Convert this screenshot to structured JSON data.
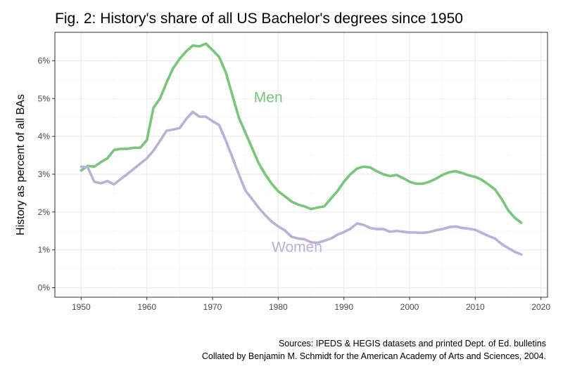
{
  "colors": {
    "men": "#78c679",
    "women": "#bcb0d9"
  },
  "chart_data": {
    "type": "line",
    "title": "Fig. 2: History's share of all US Bachelor's degrees since 1950",
    "xlabel": "",
    "ylabel": "History as percent of all BAs",
    "xlim": [
      1946,
      2021
    ],
    "ylim": [
      -0.25,
      6.75
    ],
    "x_ticks": [
      1950,
      1960,
      1970,
      1980,
      1990,
      2000,
      2010,
      2020
    ],
    "x_tick_labels": [
      "1950",
      "1960",
      "1970",
      "1980",
      "1990",
      "2000",
      "2010",
      "2020"
    ],
    "y_ticks": [
      0,
      1,
      2,
      3,
      4,
      5,
      6
    ],
    "y_tick_labels": [
      "0%",
      "1%",
      "2%",
      "3%",
      "4%",
      "5%",
      "6%"
    ],
    "grid": true,
    "series": [
      {
        "name": "Men",
        "label_x": 1976.3,
        "label_y": 4.9,
        "x": [
          1950,
          1951,
          1952,
          1953,
          1954,
          1955,
          1956,
          1957,
          1958,
          1959,
          1960,
          1961,
          1962,
          1963,
          1964,
          1965,
          1966,
          1967,
          1968,
          1969,
          1970,
          1971,
          1972,
          1973,
          1974,
          1975,
          1976,
          1977,
          1978,
          1979,
          1980,
          1981,
          1982,
          1983,
          1984,
          1985,
          1986,
          1987,
          1988,
          1989,
          1990,
          1991,
          1992,
          1993,
          1994,
          1995,
          1996,
          1997,
          1998,
          1999,
          2000,
          2001,
          2002,
          2003,
          2004,
          2005,
          2006,
          2007,
          2008,
          2009,
          2010,
          2011,
          2012,
          2013,
          2014,
          2015,
          2016,
          2017
        ],
        "values": [
          3.1,
          3.22,
          3.2,
          3.32,
          3.42,
          3.64,
          3.67,
          3.67,
          3.7,
          3.7,
          3.9,
          4.75,
          5.0,
          5.42,
          5.8,
          6.05,
          6.25,
          6.4,
          6.38,
          6.45,
          6.28,
          6.1,
          5.7,
          5.1,
          4.5,
          4.1,
          3.7,
          3.3,
          3.0,
          2.75,
          2.55,
          2.42,
          2.28,
          2.2,
          2.15,
          2.08,
          2.12,
          2.15,
          2.35,
          2.55,
          2.8,
          3.0,
          3.15,
          3.2,
          3.18,
          3.08,
          3.0,
          2.95,
          2.98,
          2.9,
          2.8,
          2.75,
          2.75,
          2.8,
          2.88,
          2.98,
          3.05,
          3.08,
          3.03,
          2.97,
          2.93,
          2.85,
          2.73,
          2.6,
          2.35,
          2.05,
          1.85,
          1.72
        ]
      },
      {
        "name": "Women",
        "label_x": 1979.0,
        "label_y": 0.95,
        "x": [
          1950,
          1951,
          1952,
          1953,
          1954,
          1955,
          1956,
          1957,
          1958,
          1959,
          1960,
          1961,
          1962,
          1963,
          1964,
          1965,
          1966,
          1967,
          1968,
          1969,
          1970,
          1971,
          1972,
          1973,
          1974,
          1975,
          1976,
          1977,
          1978,
          1979,
          1980,
          1981,
          1982,
          1983,
          1984,
          1985,
          1986,
          1987,
          1988,
          1989,
          1990,
          1991,
          1992,
          1993,
          1994,
          1995,
          1996,
          1997,
          1998,
          1999,
          2000,
          2001,
          2002,
          2003,
          2004,
          2005,
          2006,
          2007,
          2008,
          2009,
          2010,
          2011,
          2012,
          2013,
          2014,
          2015,
          2016,
          2017
        ],
        "values": [
          3.2,
          3.18,
          2.8,
          2.76,
          2.82,
          2.73,
          2.87,
          3.0,
          3.14,
          3.28,
          3.42,
          3.62,
          3.88,
          4.15,
          4.18,
          4.22,
          4.46,
          4.65,
          4.52,
          4.52,
          4.4,
          4.3,
          3.9,
          3.45,
          3.0,
          2.57,
          2.35,
          2.12,
          1.92,
          1.75,
          1.62,
          1.52,
          1.35,
          1.3,
          1.28,
          1.2,
          1.19,
          1.24,
          1.3,
          1.4,
          1.47,
          1.56,
          1.7,
          1.66,
          1.58,
          1.55,
          1.55,
          1.48,
          1.5,
          1.48,
          1.46,
          1.46,
          1.45,
          1.47,
          1.52,
          1.55,
          1.6,
          1.62,
          1.58,
          1.56,
          1.53,
          1.45,
          1.37,
          1.3,
          1.16,
          1.05,
          0.95,
          0.88
        ]
      }
    ],
    "sources": [
      "Sources: IPEDS & HEGIS datasets and printed Dept. of Ed. bulletins",
      "Collated by Benjamin M. Schmidt for the American Academy of Arts and Sciences, 2004."
    ]
  }
}
